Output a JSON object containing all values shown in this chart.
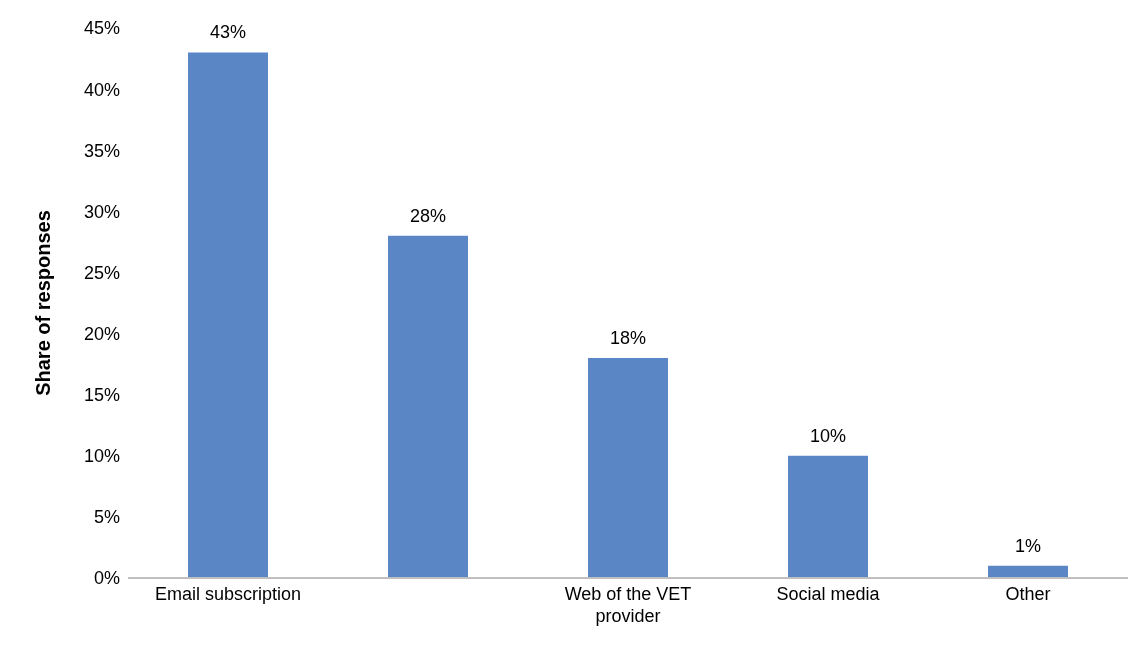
{
  "chart_data": {
    "type": "bar",
    "ylabel": "Share of responses",
    "categories": [
      "Email subscription",
      null,
      "Web of the VET provider",
      "Social media",
      "Other"
    ],
    "values": [
      43,
      28,
      18,
      10,
      1
    ],
    "value_labels": [
      "43%",
      "28%",
      "18%",
      "10%",
      "1%"
    ],
    "color": "#5b86c5",
    "ylim": [
      0,
      45
    ],
    "yticks": [
      {
        "value": 0,
        "label": "0%"
      },
      {
        "value": 5,
        "label": "5%"
      },
      {
        "value": 10,
        "label": "10%"
      },
      {
        "value": 15,
        "label": "15%"
      },
      {
        "value": 20,
        "label": "20%"
      },
      {
        "value": 25,
        "label": "25%"
      },
      {
        "value": 30,
        "label": "30%"
      },
      {
        "value": 35,
        "label": "35%"
      },
      {
        "value": 40,
        "label": "40%"
      },
      {
        "value": 45,
        "label": "45%"
      }
    ],
    "grid": false,
    "legend": false
  }
}
